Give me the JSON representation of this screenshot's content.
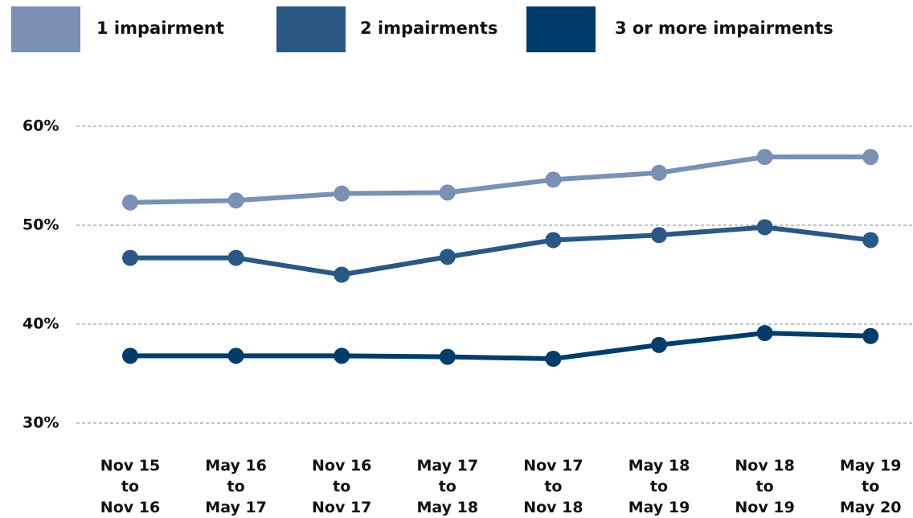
{
  "chart_data": {
    "type": "line",
    "categories": [
      "Nov 15\nto\nNov 16",
      "May 16\nto\nMay 17",
      "Nov 16\nto\nNov 17",
      "May 17\nto\nMay 18",
      "Nov 17\nto\nNov 18",
      "May 18\nto\nMay 19",
      "Nov 18\nto\nNov 19",
      "May 19\nto\nMay 20"
    ],
    "series": [
      {
        "name": "1 impairment",
        "color": "#7a90b4",
        "values": [
          52.3,
          52.5,
          53.2,
          53.3,
          54.6,
          55.3,
          56.9,
          56.9
        ]
      },
      {
        "name": "2 impairments",
        "color": "#2a5885",
        "values": [
          46.7,
          46.7,
          45.0,
          46.8,
          48.5,
          49.0,
          49.8,
          48.5
        ]
      },
      {
        "name": "3 or more impairments",
        "color": "#003d6b",
        "values": [
          36.8,
          36.8,
          36.8,
          36.7,
          36.5,
          37.9,
          39.1,
          38.8
        ]
      }
    ],
    "ylim": [
      30,
      60
    ],
    "yticks": [
      {
        "value": 30,
        "label": "30%"
      },
      {
        "value": 40,
        "label": "40%"
      },
      {
        "value": 50,
        "label": "50%"
      },
      {
        "value": 60,
        "label": "60%"
      }
    ],
    "grid": true,
    "legend": "top"
  }
}
